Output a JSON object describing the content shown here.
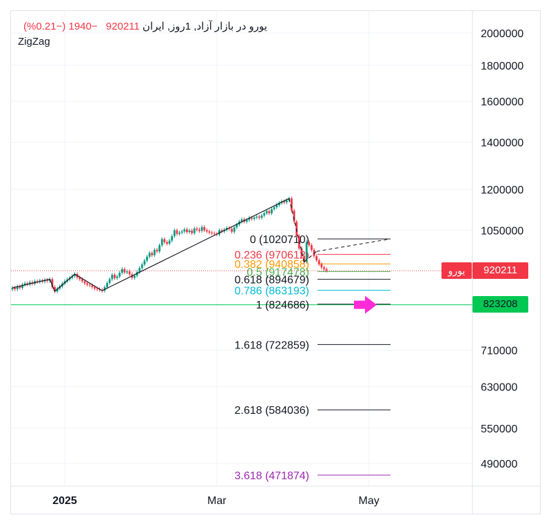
{
  "header": {
    "symbol": "یورو در بازار آزاد, 1روز, ایران",
    "price": "920211",
    "change": "−1940 (−0.21%)",
    "indicator": "ZigZag"
  },
  "price_labels": {
    "last_price_name": "یورو",
    "last_price": "920211",
    "green_line_price": "823208"
  },
  "colors": {
    "up": "#089981",
    "down": "#f23645",
    "fib_red": "#f23645",
    "fib_orange": "#ff9800",
    "fib_green": "#4caf50",
    "fib_cyan": "#00bcd4",
    "fib_purple": "#9c27b0",
    "green_line": "#00c853",
    "arrow": "#ff2bd6"
  },
  "chart_data": {
    "type": "candlestick",
    "x_axis": {
      "tick_labels": [
        "2025",
        "Mar",
        "May"
      ]
    },
    "y_axis": {
      "scale": "log",
      "tick_labels": [
        "2000000",
        "1800000",
        "1600000",
        "1400000",
        "1200000",
        "1050000",
        "710000",
        "630000",
        "550000",
        "490000"
      ],
      "range": [
        440000,
        2100000
      ]
    },
    "fibonacci": [
      {
        "level": "0",
        "value": 1020710,
        "label": "0 (1020710)",
        "color": "#131722"
      },
      {
        "level": "0.236",
        "value": 970612,
        "label": "0.236 (970612)",
        "color": "#f23645"
      },
      {
        "level": "0.382",
        "value": 940858,
        "label": "0.382 (940858)",
        "color": "#ff9800"
      },
      {
        "level": "0.5",
        "value": 917478,
        "label": "0.5 (917478)",
        "color": "#4caf50"
      },
      {
        "level": "0.618",
        "value": 894679,
        "label": "0.618 (894679)",
        "color": "#131722"
      },
      {
        "level": "0.786",
        "value": 863193,
        "label": "0.786 (863193)",
        "color": "#00bcd4"
      },
      {
        "level": "1",
        "value": 824686,
        "label": "1 (824686)",
        "color": "#131722"
      },
      {
        "level": "1.618",
        "value": 722859,
        "label": "1.618 (722859)",
        "color": "#131722"
      },
      {
        "level": "2.618",
        "value": 584036,
        "label": "2.618 (584036)",
        "color": "#131722"
      },
      {
        "level": "3.618",
        "value": 471874,
        "label": "3.618 (471874)",
        "color": "#9c27b0"
      }
    ],
    "zigzag": [
      [
        0,
        870000
      ],
      [
        15,
        895000
      ],
      [
        17,
        860000
      ],
      [
        25,
        910000
      ],
      [
        36,
        862000
      ],
      [
        111,
        1165000
      ],
      [
        117,
        947000
      ],
      [
        122,
        980000
      ]
    ],
    "closes": [
      870000,
      866000,
      874000,
      870000,
      879000,
      883000,
      880000,
      886000,
      882000,
      889000,
      887000,
      891000,
      888000,
      893000,
      890000,
      895000,
      872000,
      860000,
      868000,
      874000,
      882000,
      889000,
      894000,
      899000,
      904000,
      910000,
      900000,
      895000,
      889000,
      883000,
      879000,
      877000,
      872000,
      868000,
      866000,
      864000,
      862000,
      872000,
      884000,
      895000,
      908000,
      898000,
      903000,
      914000,
      925000,
      915000,
      918000,
      909000,
      899000,
      905000,
      916000,
      928000,
      939000,
      951000,
      963000,
      975000,
      968000,
      985000,
      980000,
      1000000,
      1020000,
      1010000,
      1005000,
      1015000,
      1030000,
      1050000,
      1038000,
      1042000,
      1046000,
      1053000,
      1044000,
      1049000,
      1040000,
      1056000,
      1052000,
      1048000,
      1061000,
      1050000,
      1046000,
      1042000,
      1040000,
      1038000,
      1036000,
      1050000,
      1046000,
      1052000,
      1058000,
      1055000,
      1045000,
      1060000,
      1070000,
      1080000,
      1088000,
      1080000,
      1086000,
      1094000,
      1090000,
      1095000,
      1098000,
      1094000,
      1102000,
      1110000,
      1118000,
      1110000,
      1125000,
      1132000,
      1140000,
      1148000,
      1154000,
      1150000,
      1158000,
      1165000,
      1120000,
      1080000,
      1030000,
      990000,
      965000,
      947000,
      1010000,
      1000000,
      985000,
      965000,
      952000,
      940000,
      930000,
      925000,
      920211
    ]
  }
}
